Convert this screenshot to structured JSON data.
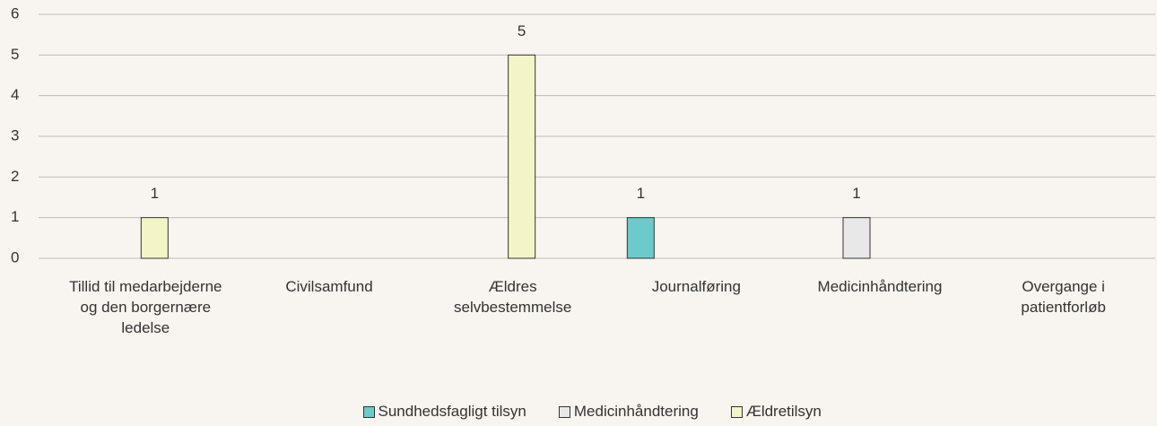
{
  "chart_data": {
    "type": "bar",
    "categories": [
      "Tillid til medarbejderne og den borgernære ledelse",
      "Civilsamfund",
      "Ældres selvbestemmelse",
      "Journalføring",
      "Medicinhåndtering",
      "Overgange i patientforløb"
    ],
    "series": [
      {
        "name": "Sundhedsfagligt tilsyn",
        "color": "#6ccaca",
        "values": [
          null,
          null,
          null,
          1,
          null,
          null
        ]
      },
      {
        "name": "Medicinhåndtering",
        "color": "#e8e8e8",
        "values": [
          null,
          null,
          null,
          null,
          1,
          null
        ]
      },
      {
        "name": "Ældretilsyn",
        "color": "#f3f5c6",
        "values": [
          1,
          null,
          5,
          null,
          null,
          null
        ]
      }
    ],
    "ylim": [
      0,
      6
    ],
    "yticks": [
      0,
      1,
      2,
      3,
      4,
      5,
      6
    ],
    "grid": true,
    "legend": "bottom"
  }
}
